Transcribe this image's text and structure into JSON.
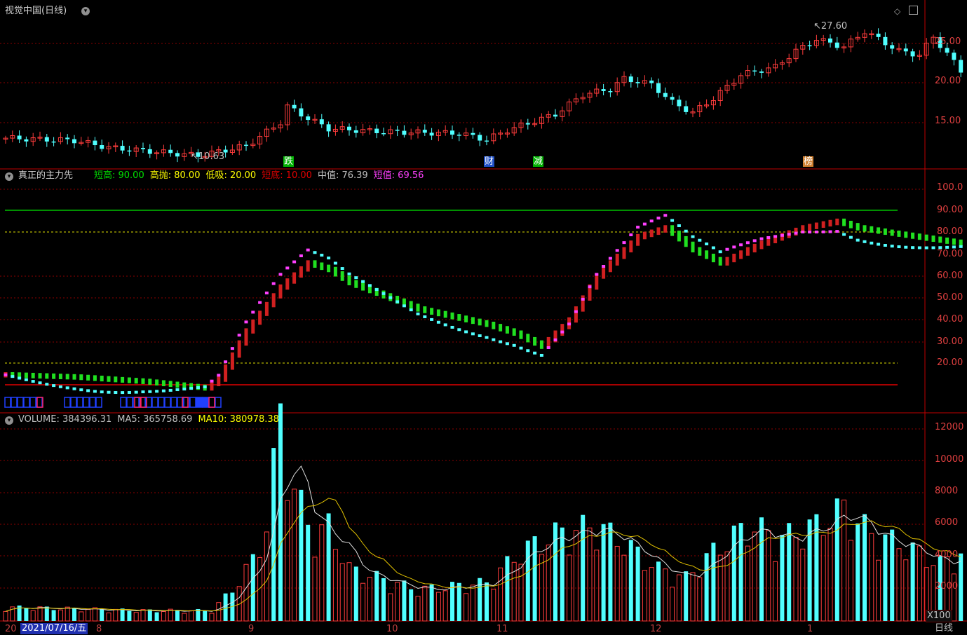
{
  "window": {
    "title": "视觉中国(日线)",
    "period_label": "日线",
    "scale_label": "X100"
  },
  "price_panel": {
    "y_ticks": [
      "25.00",
      "20.00",
      "15.00"
    ],
    "high_label": "27.60",
    "low_label": "10.63",
    "event_markers": [
      {
        "text": "跌",
        "color": "#00b000"
      },
      {
        "text": "财",
        "color": "#2050c8"
      },
      {
        "text": "减",
        "color": "#00b000"
      },
      {
        "text": "榜",
        "color": "#d08030"
      }
    ]
  },
  "indicator_panel": {
    "name": "真正的主力先",
    "fields": [
      {
        "key": "短高:",
        "value": "90.00",
        "color": "#00e000"
      },
      {
        "key": "高抛:",
        "value": "80.00",
        "color": "#ffff00"
      },
      {
        "key": "低吸:",
        "value": "20.00",
        "color": "#ffff00"
      },
      {
        "key": "短底:",
        "value": "10.00",
        "color": "#e00000"
      },
      {
        "key": "中值:",
        "value": "76.39",
        "color": "#c0c0c0"
      },
      {
        "key": "短值:",
        "value": "69.56",
        "color": "#ff40ff"
      }
    ],
    "y_ticks": [
      "100.0",
      "90.00",
      "80.00",
      "70.00",
      "60.00",
      "50.00",
      "40.00",
      "30.00",
      "20.00"
    ],
    "levels": {
      "short_high": 90,
      "high_sell": 80,
      "low_buy": 20,
      "short_bottom": 10
    }
  },
  "volume_panel": {
    "fields": [
      {
        "key": "VOLUME:",
        "value": "384396.31",
        "color": "#c0c0c0"
      },
      {
        "key": "MA5:",
        "value": "365758.69",
        "color": "#c0c0c0"
      },
      {
        "key": "MA10:",
        "value": "380978.38",
        "color": "#ffff00"
      }
    ],
    "y_ticks": [
      "12000",
      "10000",
      "8000",
      "6000",
      "4000",
      "2000"
    ]
  },
  "x_axis": {
    "cursor_date": "2021/07/16/五",
    "prefix_label": "20",
    "month_labels": [
      "8",
      "9",
      "10",
      "11",
      "12",
      "1"
    ]
  },
  "colors": {
    "up": "#ff3c3c",
    "down": "#50ffff",
    "grid": "#8b0000",
    "axis": "#c00000"
  }
}
